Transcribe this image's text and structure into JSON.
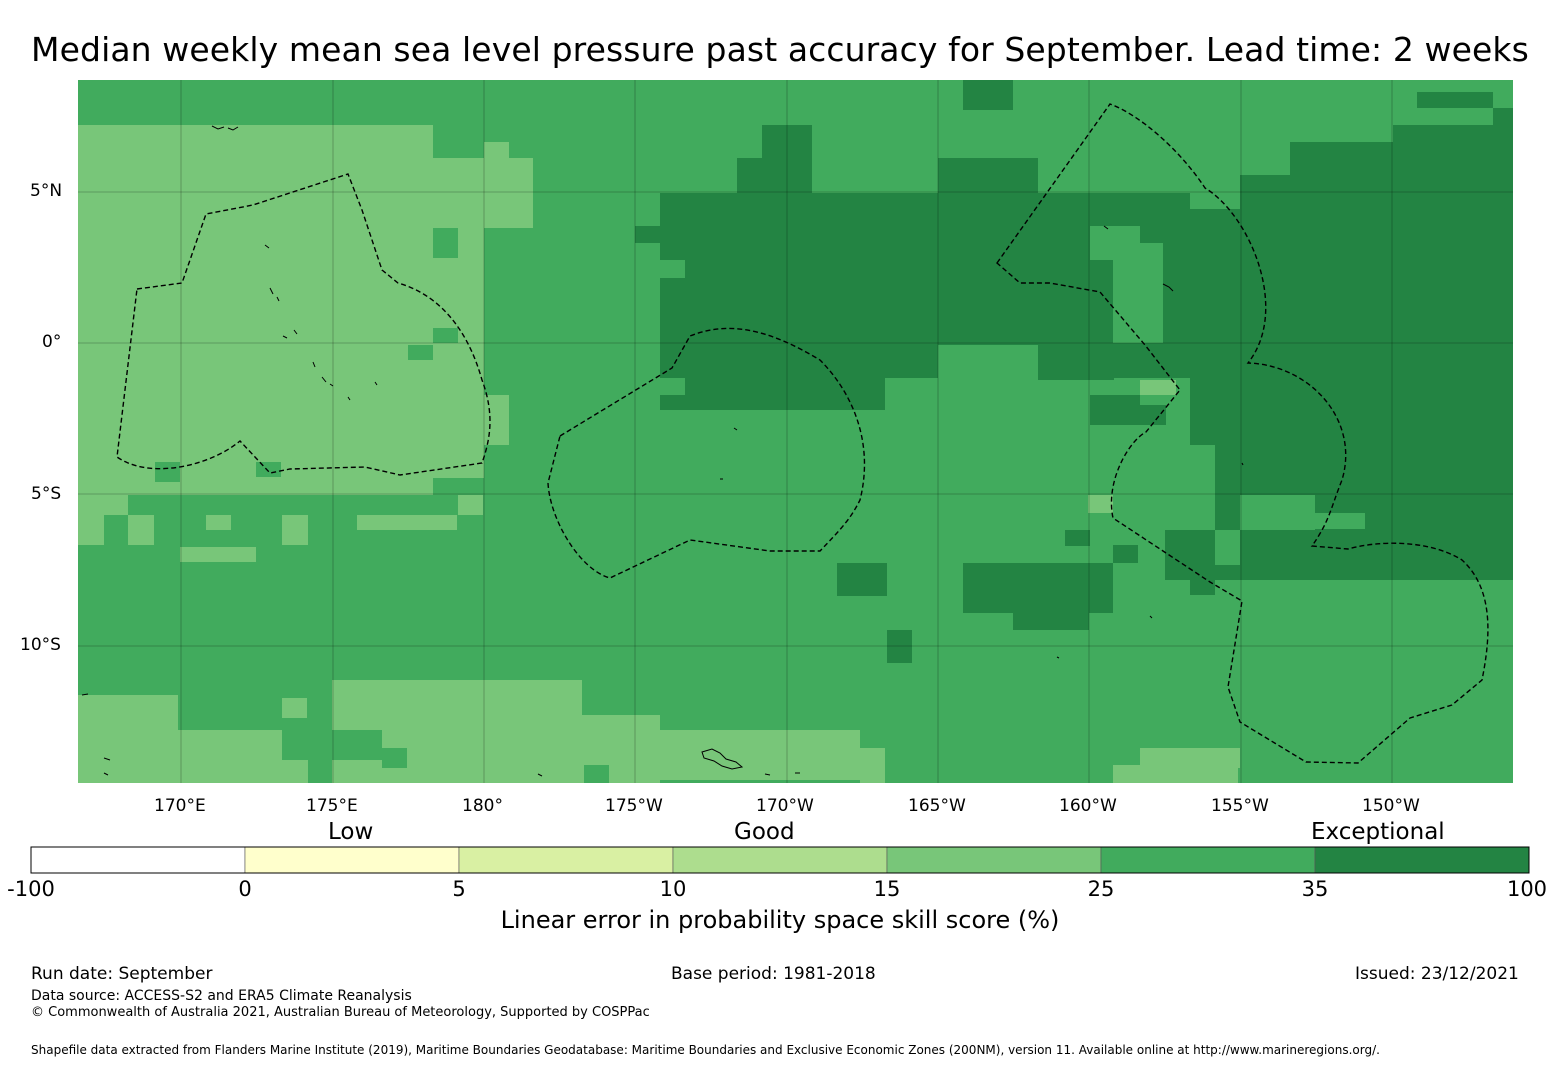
{
  "title": "Median weekly mean sea level pressure past accuracy for September. Lead time: 2 weeks",
  "map": {
    "lon_labels": [
      "170°E",
      "175°E",
      "180°",
      "175°W",
      "170°W",
      "165°W",
      "160°W",
      "155°W",
      "150°W"
    ],
    "lat_labels": [
      "5°N",
      "0°",
      "5°S",
      "10°S"
    ],
    "extent": {
      "lon_min_east": 166.6,
      "lon_max_east": 213.9,
      "lat_min": -14.6,
      "lat_max": 8.6
    }
  },
  "colorbar": {
    "category_labels": [
      "Low",
      "Good",
      "Exceptional"
    ],
    "tick_labels": [
      "-100",
      "0",
      "5",
      "10",
      "15",
      "25",
      "35",
      "100"
    ],
    "colors": [
      "#ffffff",
      "#ffffcc",
      "#d9f0a3",
      "#addd8e",
      "#78c679",
      "#41ab5d",
      "#238443"
    ],
    "title": "Linear error in probability space skill score (%)"
  },
  "footer": {
    "run_date": "Run date: September",
    "base_period": "Base period: 1981-2018",
    "issued": "Issued: 23/12/2021",
    "data_source": "Data source: ACCESS-S2 and ERA5 Climate Reanalysis",
    "copyright": "© Commonwealth of Australia 2021, Australian Bureau of Meteorology, Supported by COSPPac",
    "shapefile": "Shapefile data extracted from Flanders Marine Institute (2019), Maritime Boundaries Geodatabase: Maritime Boundaries and Exclusive Economic Zones (200NM), version 11. Available online at http://www.marineregions.org/."
  }
}
